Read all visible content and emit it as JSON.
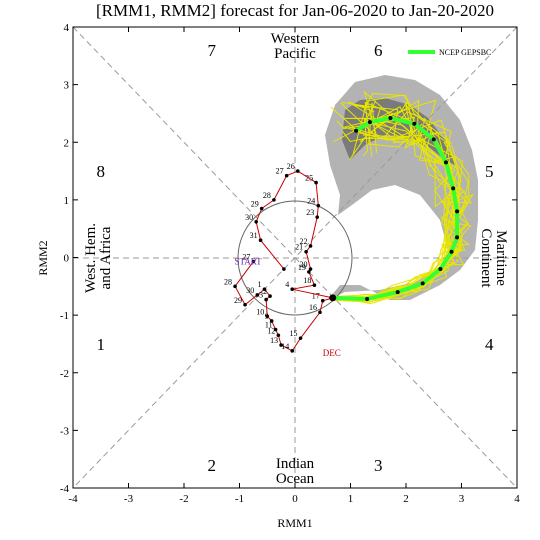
{
  "chart_data": {
    "type": "line",
    "title": "[RMM1, RMM2] forecast for Jan-06-2020 to Jan-20-2020",
    "xlabel": "RMM1",
    "ylabel": "RMM2",
    "xlim": [
      -4,
      4
    ],
    "ylim": [
      -4,
      4
    ],
    "xticks": [
      "-4",
      "-3",
      "-2",
      "-1",
      "0",
      "1",
      "2",
      "3",
      "4"
    ],
    "yticks": [
      "-4",
      "-3",
      "-2",
      "-1",
      "0",
      "1",
      "2",
      "3",
      "4"
    ],
    "phase_labels": [
      {
        "text": "1",
        "x": -3.5,
        "y": -1.5
      },
      {
        "text": "2",
        "x": -1.5,
        "y": -3.6
      },
      {
        "text": "3",
        "x": 1.5,
        "y": -3.6
      },
      {
        "text": "4",
        "x": 3.5,
        "y": -1.5
      },
      {
        "text": "5",
        "x": 3.5,
        "y": 1.5
      },
      {
        "text": "6",
        "x": 1.5,
        "y": 3.6
      },
      {
        "text": "7",
        "x": -1.5,
        "y": 3.6
      },
      {
        "text": "8",
        "x": -3.5,
        "y": 1.5
      }
    ],
    "region_labels": {
      "western_pacific": [
        "Western",
        "Pacific"
      ],
      "indian_ocean": [
        "Indian",
        "Ocean"
      ],
      "west_hem": [
        "West. Hem.",
        "and Africa"
      ],
      "maritime": [
        "Maritime",
        "Continent"
      ]
    },
    "legend": {
      "label": "NCEP GEPSBC",
      "position": "top-right",
      "color": "#33ff33"
    },
    "observed": {
      "color": "#cc0000",
      "points": [
        {
          "x": -0.75,
          "y": -0.07,
          "label": "27"
        },
        {
          "x": -1.08,
          "y": -0.5,
          "label": "28"
        },
        {
          "x": -0.9,
          "y": -0.82,
          "label": "29"
        },
        {
          "x": -0.68,
          "y": -0.65,
          "label": "30"
        },
        {
          "x": -0.55,
          "y": -0.55,
          "label": "1"
        },
        {
          "x": -0.45,
          "y": -0.67,
          "label": "2"
        },
        {
          "x": -0.52,
          "y": -0.73,
          "label": "3"
        },
        {
          "x": -0.5,
          "y": -1.02,
          "label": "10"
        },
        {
          "x": -0.42,
          "y": -1.1,
          "label": "9"
        },
        {
          "x": -0.35,
          "y": -1.25,
          "label": "11"
        },
        {
          "x": -0.3,
          "y": -1.35,
          "label": "12"
        },
        {
          "x": -0.25,
          "y": -1.52,
          "label": "13"
        },
        {
          "x": -0.05,
          "y": -1.62,
          "label": "14"
        },
        {
          "x": 0.1,
          "y": -1.4,
          "label": "15"
        },
        {
          "x": 0.45,
          "y": -0.95,
          "label": "16"
        },
        {
          "x": 0.5,
          "y": -0.75,
          "label": "17"
        },
        {
          "x": 0.68,
          "y": -0.7,
          "label": "DEC"
        }
      ],
      "start_label": "START",
      "start_color": "#6a1fb0",
      "end_label_color": "#cc0000"
    },
    "continuation": {
      "color": "#cc0000",
      "points": [
        {
          "x": -0.2,
          "y": -0.2,
          "label": ""
        },
        {
          "x": -0.62,
          "y": 0.3,
          "label": "31"
        },
        {
          "x": -0.7,
          "y": 0.62,
          "label": "30"
        },
        {
          "x": -0.6,
          "y": 0.85,
          "label": "29"
        },
        {
          "x": -0.38,
          "y": 1.0,
          "label": "28"
        },
        {
          "x": -0.15,
          "y": 1.42,
          "label": "27"
        },
        {
          "x": 0.05,
          "y": 1.5,
          "label": "26"
        },
        {
          "x": 0.38,
          "y": 1.3,
          "label": "25"
        },
        {
          "x": 0.42,
          "y": 0.9,
          "label": "24"
        },
        {
          "x": 0.4,
          "y": 0.7,
          "label": "23"
        },
        {
          "x": 0.28,
          "y": 0.2,
          "label": "22"
        },
        {
          "x": 0.2,
          "y": 0.1,
          "label": "21"
        },
        {
          "x": 0.28,
          "y": -0.2,
          "label": "20"
        },
        {
          "x": 0.25,
          "y": -0.25,
          "label": "19"
        },
        {
          "x": 0.35,
          "y": -0.48,
          "label": "18"
        },
        {
          "x": -0.05,
          "y": -0.55,
          "label": "4"
        },
        {
          "x": 0.68,
          "y": -0.7,
          "label": ""
        }
      ]
    },
    "ensemble_mean": {
      "color": "#33ff33",
      "points": [
        {
          "x": 0.68,
          "y": -0.7
        },
        {
          "x": 1.3,
          "y": -0.72
        },
        {
          "x": 1.85,
          "y": -0.6
        },
        {
          "x": 2.3,
          "y": -0.45
        },
        {
          "x": 2.62,
          "y": -0.2
        },
        {
          "x": 2.82,
          "y": 0.1
        },
        {
          "x": 2.92,
          "y": 0.35
        },
        {
          "x": 2.92,
          "y": 0.8
        },
        {
          "x": 2.85,
          "y": 1.2
        },
        {
          "x": 2.72,
          "y": 1.65
        },
        {
          "x": 2.5,
          "y": 2.05
        },
        {
          "x": 2.15,
          "y": 2.32
        },
        {
          "x": 1.72,
          "y": 2.42
        },
        {
          "x": 1.35,
          "y": 2.35
        },
        {
          "x": 1.1,
          "y": 2.2
        }
      ]
    },
    "shading": {
      "outer_color": "#b3b3b3",
      "inner_color": "#7a7a7a",
      "member_color": "#e6e600"
    }
  }
}
